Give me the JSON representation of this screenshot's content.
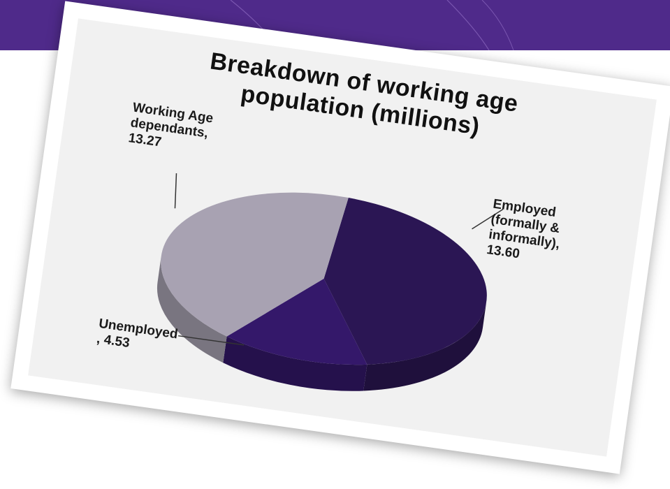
{
  "slide": {
    "banner_color": "#4f2a8a"
  },
  "chart_data": {
    "type": "pie",
    "title_lines": [
      "Breakdown of working age",
      "population (millions)"
    ],
    "title": "Breakdown of working age population (millions)",
    "slices": [
      {
        "label": "Employed (formally & informally)",
        "value": 13.6,
        "color": "#2b1654"
      },
      {
        "label": "Unemployed",
        "value": 4.53,
        "color": "#34186a"
      },
      {
        "label": "Working Age dependants",
        "value": 13.27,
        "color": "#a8a2b2"
      }
    ],
    "data_labels": {
      "employed": "Employed\n(formally &\ninformally),\n13.60",
      "dependants": "Working Age\ndependants,\n13.27",
      "unemployed": "Unemployed\n, 4.53"
    },
    "style": "3d"
  }
}
